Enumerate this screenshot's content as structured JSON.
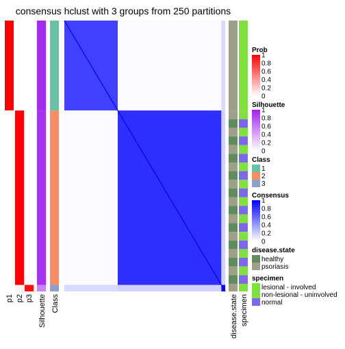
{
  "chart_data": {
    "type": "heatmap",
    "title": "consensus hclust with 3 groups from 250 partitions",
    "n_samples": 250,
    "groups": [
      {
        "class": "1",
        "count": 83,
        "prob": [
          1.0,
          0.0,
          0.0
        ],
        "silhouette": 0.95,
        "disease_state": "psoriasis",
        "specimen": "lesional - involved"
      },
      {
        "class": "2",
        "count": 161,
        "prob": [
          0.0,
          1.0,
          0.0
        ],
        "silhouette": 0.92,
        "disease_state": "mixed",
        "specimen": "mixed"
      },
      {
        "class": "3",
        "count": 6,
        "prob": [
          0.0,
          0.05,
          0.95
        ],
        "silhouette": 0.55,
        "disease_state": "psoriasis",
        "specimen": "lesional - involved"
      }
    ],
    "consensus_within": {
      "class1": 0.75,
      "class2": 0.82,
      "class3": 0.95
    },
    "consensus_between": {
      "class1_class2": 0.02,
      "class1_class3": 0.15,
      "class2_class3": 0.18
    },
    "column_labels": [
      "p1",
      "p2",
      "p3",
      "Silhouette",
      "Class",
      "disease.state",
      "specimen"
    ],
    "legends": [
      {
        "title": "Prob",
        "type": "gradient",
        "ticks": [
          "1",
          "0.8",
          "0.6",
          "0.4",
          "0.2",
          "0"
        ],
        "colors": [
          "#ff0000",
          "#ffffff"
        ]
      },
      {
        "title": "Silhouette",
        "type": "gradient",
        "ticks": [
          "1",
          "0.8",
          "0.6",
          "0.4",
          "0.2",
          "0"
        ],
        "colors": [
          "#a020f0",
          "#ffffff"
        ]
      },
      {
        "title": "Class",
        "type": "discrete",
        "items": [
          {
            "label": "1",
            "color": "#66c2a5"
          },
          {
            "label": "2",
            "color": "#fc8d62"
          },
          {
            "label": "3",
            "color": "#8da0cb"
          }
        ]
      },
      {
        "title": "Consensus",
        "type": "gradient",
        "ticks": [
          "1",
          "0.8",
          "0.6",
          "0.4",
          "0.2",
          "0"
        ],
        "colors": [
          "#0000ff",
          "#ffffff"
        ]
      },
      {
        "title": "disease.state",
        "type": "discrete",
        "items": [
          {
            "label": "healthy",
            "color": "#5f8b5f"
          },
          {
            "label": "psoriasis",
            "color": "#a0a08a"
          }
        ]
      },
      {
        "title": "specimen",
        "type": "discrete",
        "items": [
          {
            "label": "lesional - involved",
            "color": "#7ee23c"
          },
          {
            "label": "non-lesional - uninvolved",
            "color": "#7ee23c"
          },
          {
            "label": "normal",
            "color": "#7b68ee"
          }
        ]
      }
    ]
  }
}
